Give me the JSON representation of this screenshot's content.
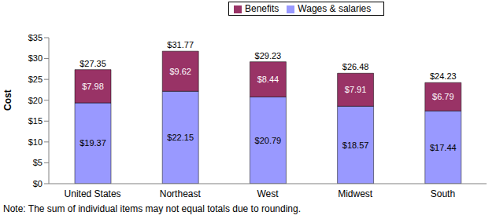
{
  "chart_data": {
    "type": "bar",
    "stacked": true,
    "data_labels": true,
    "grid": false,
    "legend": "top",
    "y_label": "Cost",
    "categories": [
      "United States",
      "Northeast",
      "West",
      "Midwest",
      "South"
    ],
    "series": [
      {
        "name": "Wages & salaries",
        "color": "#9999ff",
        "values": [
          19.37,
          22.15,
          20.79,
          18.57,
          17.44
        ],
        "value_labels": [
          "$19.37",
          "$22.15",
          "$20.79",
          "$18.57",
          "$17.44"
        ]
      },
      {
        "name": "Benefits",
        "color": "#993366",
        "values": [
          7.98,
          9.62,
          8.44,
          7.91,
          6.79
        ],
        "value_labels": [
          "$7.98",
          "$9.62",
          "$8.44",
          "$7.91",
          "$6.79"
        ]
      }
    ],
    "totals": [
      27.35,
      31.77,
      29.23,
      26.48,
      24.23
    ],
    "total_labels": [
      "$27.35",
      "$31.77",
      "$29.23",
      "$26.48",
      "$24.23"
    ],
    "ylim": [
      0,
      35
    ],
    "yticks": [
      {
        "value": 0,
        "label": "$0"
      },
      {
        "value": 5,
        "label": "$5"
      },
      {
        "value": 10,
        "label": "$10"
      },
      {
        "value": 15,
        "label": "$15"
      },
      {
        "value": 20,
        "label": "$20"
      },
      {
        "value": 25,
        "label": "$25"
      },
      {
        "value": 30,
        "label": "$30"
      },
      {
        "value": 35,
        "label": "$35"
      }
    ],
    "note": "Note: The sum of individual items may not equal totals due to rounding."
  }
}
